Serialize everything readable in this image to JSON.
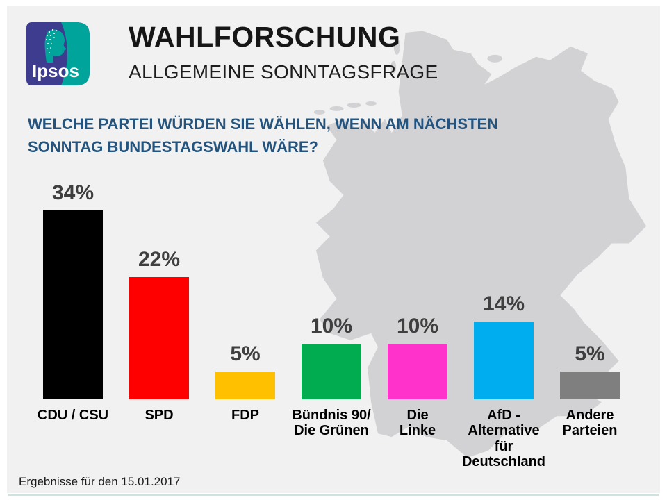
{
  "header": {
    "logo_text": "Ipsos",
    "title": "WAHLFORSCHUNG",
    "subtitle": "ALLGEMEINE SONNTAGSFRAGE"
  },
  "question": {
    "line1": "WELCHE PARTEI WÜRDEN SIE WÄHLEN, WENN AM NÄCHSTEN",
    "line2": "SONNTAG BUNDESTAGSWAHL WÄRE?"
  },
  "footer": {
    "results_note": "Ergebnisse für den 15.01.2017"
  },
  "colors": {
    "panel_background": "#f1f1f1",
    "map_fill": "#d2d2d5",
    "question_text": "#24547e",
    "value_label_text": "#3f3f3f",
    "logo_purple": "#3e3c8f",
    "logo_teal": "#00a49b"
  },
  "chart_data": {
    "type": "bar",
    "title": "Allgemeine Sonntagsfrage",
    "categories": [
      "CDU / CSU",
      "SPD",
      "FDP",
      "Bündnis 90/ Die Grünen",
      "Die Linke",
      "AfD - Alternative für Deutschland",
      "Andere Parteien"
    ],
    "category_lines": [
      [
        "CDU / CSU"
      ],
      [
        "SPD"
      ],
      [
        "FDP"
      ],
      [
        "Bündnis 90/",
        "Die Grünen"
      ],
      [
        "Die",
        "Linke"
      ],
      [
        "AfD -",
        "Alternative",
        "für",
        "Deutschland"
      ],
      [
        "Andere",
        "Parteien"
      ]
    ],
    "values": [
      34,
      22,
      5,
      10,
      10,
      14,
      5
    ],
    "value_labels": [
      "34%",
      "22%",
      "5%",
      "10%",
      "10%",
      "14%",
      "5%"
    ],
    "bar_colors": [
      "#000000",
      "#ff0000",
      "#ffc000",
      "#00ac4f",
      "#ff33cc",
      "#00aeef",
      "#7f7f7f"
    ],
    "unit": "%",
    "ylim": [
      0,
      40
    ],
    "grid": false,
    "legend": false,
    "xlabel": "",
    "ylabel": ""
  }
}
